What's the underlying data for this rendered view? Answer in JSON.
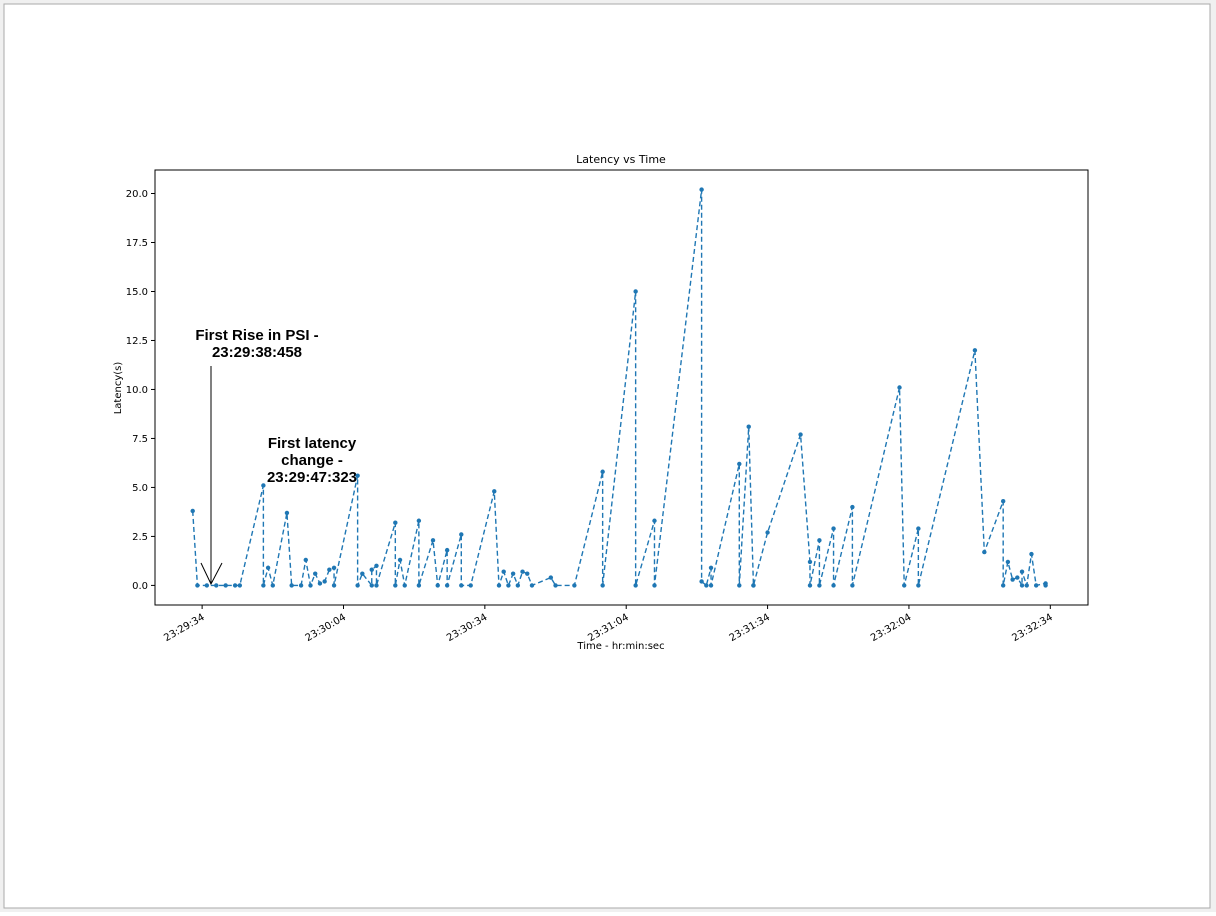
{
  "chart_data": {
    "type": "line",
    "title": "Latency vs Time",
    "x_label": "Time - hr:min:sec",
    "y_label": "Latency(s)",
    "color": "#1f77b4",
    "line_style": "dashed",
    "markers": true,
    "x": [
      "23:29:32",
      "23:29:33",
      "23:29:35",
      "23:29:37",
      "23:29:39",
      "23:29:41",
      "23:29:42",
      "23:29:47",
      "23:29:47",
      "23:29:48",
      "23:29:49",
      "23:29:52",
      "23:29:53",
      "23:29:55",
      "23:29:56",
      "23:29:57",
      "23:29:58",
      "23:29:59",
      "23:30:00",
      "23:30:01",
      "23:30:02",
      "23:30:02",
      "23:30:07",
      "23:30:07",
      "23:30:08",
      "23:30:10",
      "23:30:10",
      "23:30:11",
      "23:30:11",
      "23:30:15",
      "23:30:15",
      "23:30:16",
      "23:30:17",
      "23:30:20",
      "23:30:20",
      "23:30:23",
      "23:30:24",
      "23:30:26",
      "23:30:26",
      "23:30:29",
      "23:30:29",
      "23:30:31",
      "23:30:36",
      "23:30:37",
      "23:30:38",
      "23:30:39",
      "23:30:40",
      "23:30:41",
      "23:30:42",
      "23:30:43",
      "23:30:44",
      "23:30:48",
      "23:30:49",
      "23:30:53",
      "23:30:59",
      "23:30:59",
      "23:31:06",
      "23:31:06",
      "23:31:10",
      "23:31:10",
      "23:31:20",
      "23:31:20",
      "23:31:21",
      "23:31:22",
      "23:31:22",
      "23:31:28",
      "23:31:28",
      "23:31:30",
      "23:31:31",
      "23:31:31",
      "23:31:34",
      "23:31:41",
      "23:31:43",
      "23:31:43",
      "23:31:45",
      "23:31:45",
      "23:31:48",
      "23:31:48",
      "23:31:52",
      "23:31:52",
      "23:32:02",
      "23:32:03",
      "23:32:06",
      "23:32:06",
      "23:32:18",
      "23:32:20",
      "23:32:24",
      "23:32:24",
      "23:32:25",
      "23:32:26",
      "23:32:27",
      "23:32:28",
      "23:32:28",
      "23:32:29",
      "23:32:30",
      "23:32:31",
      "23:32:33",
      "23:32:33"
    ],
    "values": [
      3.8,
      0,
      0,
      0,
      0,
      0,
      0,
      5.1,
      0,
      0.9,
      0,
      3.7,
      0,
      0,
      1.3,
      0,
      0.6,
      0.1,
      0.2,
      0.8,
      0.9,
      0,
      5.6,
      0,
      0.6,
      0,
      0.8,
      1.0,
      0,
      3.2,
      0,
      1.3,
      0,
      3.3,
      0,
      2.3,
      0,
      1.8,
      0,
      2.6,
      0,
      0,
      4.8,
      0,
      0.7,
      0,
      0.6,
      0,
      0.7,
      0.6,
      0,
      0.4,
      0,
      0,
      5.8,
      0,
      15.0,
      0,
      3.3,
      0,
      20.2,
      0.2,
      0,
      0.9,
      0,
      6.2,
      0,
      8.1,
      0,
      0,
      2.7,
      7.7,
      1.2,
      0,
      2.3,
      0,
      2.9,
      0,
      4.0,
      0,
      10.1,
      0,
      2.9,
      0,
      12.0,
      1.7,
      4.3,
      0,
      1.2,
      0.3,
      0.4,
      0,
      0.7,
      0,
      1.6,
      0,
      0.1,
      0
    ],
    "xlim": [
      "23:29:24",
      "23:32:42"
    ],
    "xticks": [
      "23:29:34",
      "23:30:04",
      "23:30:34",
      "23:31:04",
      "23:31:34",
      "23:32:04",
      "23:32:34"
    ],
    "ylim": [
      -1.0,
      21.2
    ],
    "yticks": [
      {
        "value": 0,
        "label": "0.0"
      },
      {
        "value": 2.5,
        "label": "2.5"
      },
      {
        "value": 5,
        "label": "5.0"
      },
      {
        "value": 7.5,
        "label": "7.5"
      },
      {
        "value": 10,
        "label": "10.0"
      },
      {
        "value": 12.5,
        "label": "12.5"
      },
      {
        "value": 15,
        "label": "15.0"
      },
      {
        "value": 17.5,
        "label": "17.5"
      },
      {
        "value": 20,
        "label": "20.0"
      }
    ],
    "grid": false,
    "annotations": [
      {
        "lines": [
          "First Rise in PSI -",
          "23:29:38:458"
        ]
      },
      {
        "lines": [
          "First latency",
          "change -",
          "23:29:47:323"
        ]
      }
    ]
  }
}
